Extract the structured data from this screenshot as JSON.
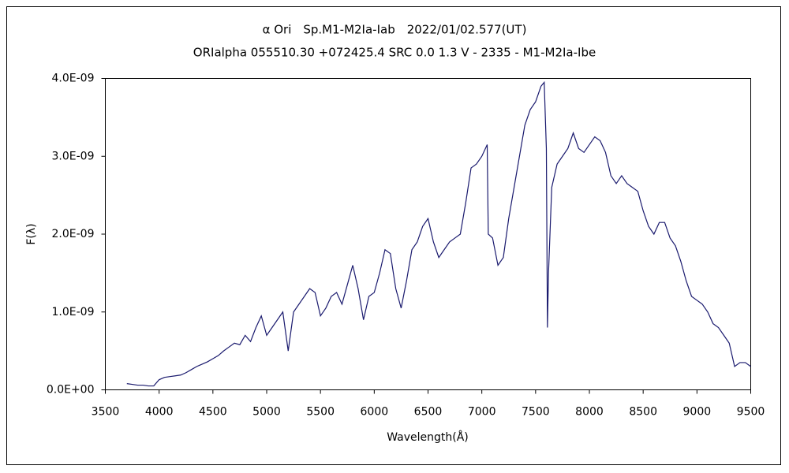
{
  "chart_data": {
    "type": "line",
    "title": "α Ori　Sp.M1-M2Ia-Iab　2022/01/02.577(UT)",
    "subtitle": "ORIalpha 055510.30 +072425.4 SRC 0.0 1.3 V - 2335 - M1-M2Ia-Ibe",
    "x_label": "Wavelength(Å)",
    "y_label": "F(λ)",
    "color": "#1a1a6e",
    "xlim": [
      3500,
      9500
    ],
    "xticks": [
      3500,
      4000,
      4500,
      5000,
      5500,
      6000,
      6500,
      7000,
      7500,
      8000,
      8500,
      9000,
      9500
    ],
    "ylim": [
      0,
      4e-09
    ],
    "yticks": [
      {
        "value": 0,
        "label": "0.0E+00"
      },
      {
        "value": 1e-09,
        "label": "1.0E-09"
      },
      {
        "value": 2e-09,
        "label": "2.0E-09"
      },
      {
        "value": 3e-09,
        "label": "3.0E-09"
      },
      {
        "value": 4e-09,
        "label": "4.0E-09"
      }
    ],
    "x": [
      3700,
      3750,
      3800,
      3850,
      3900,
      3950,
      4000,
      4050,
      4100,
      4150,
      4200,
      4250,
      4300,
      4350,
      4400,
      4450,
      4500,
      4550,
      4600,
      4650,
      4700,
      4750,
      4800,
      4850,
      4900,
      4950,
      5000,
      5050,
      5100,
      5150,
      5200,
      5250,
      5300,
      5350,
      5400,
      5450,
      5500,
      5550,
      5600,
      5650,
      5700,
      5750,
      5800,
      5850,
      5900,
      5950,
      6000,
      6050,
      6100,
      6150,
      6200,
      6250,
      6300,
      6350,
      6400,
      6450,
      6500,
      6550,
      6600,
      6650,
      6700,
      6750,
      6800,
      6850,
      6900,
      6950,
      7000,
      7050,
      7060,
      7100,
      7150,
      7200,
      7250,
      7300,
      7350,
      7400,
      7450,
      7500,
      7550,
      7580,
      7600,
      7610,
      7620,
      7650,
      7700,
      7750,
      7800,
      7850,
      7900,
      7950,
      8000,
      8050,
      8100,
      8150,
      8200,
      8250,
      8300,
      8350,
      8400,
      8450,
      8500,
      8550,
      8600,
      8650,
      8700,
      8750,
      8800,
      8850,
      8900,
      8950,
      9000,
      9050,
      9100,
      9150,
      9200,
      9250,
      9300,
      9350,
      9400,
      9450,
      9500
    ],
    "values": [
      8e-11,
      7e-11,
      6e-11,
      6e-11,
      5e-11,
      5e-11,
      1.3e-10,
      1.6e-10,
      1.7e-10,
      1.8e-10,
      1.9e-10,
      2.2e-10,
      2.6e-10,
      3e-10,
      3.3e-10,
      3.6e-10,
      4e-10,
      4.4e-10,
      5e-10,
      5.5e-10,
      6e-10,
      5.8e-10,
      7e-10,
      6.2e-10,
      8e-10,
      9.5e-10,
      7e-10,
      8e-10,
      9e-10,
      1e-09,
      5e-10,
      1e-09,
      1.1e-09,
      1.2e-09,
      1.3e-09,
      1.25e-09,
      9.5e-10,
      1.05e-09,
      1.2e-09,
      1.25e-09,
      1.1e-09,
      1.35e-09,
      1.6e-09,
      1.3e-09,
      9e-10,
      1.2e-09,
      1.25e-09,
      1.5e-09,
      1.8e-09,
      1.75e-09,
      1.3e-09,
      1.05e-09,
      1.4e-09,
      1.8e-09,
      1.9e-09,
      2.1e-09,
      2.2e-09,
      1.9e-09,
      1.7e-09,
      1.8e-09,
      1.9e-09,
      1.95e-09,
      2e-09,
      2.4e-09,
      2.85e-09,
      2.9e-09,
      3e-09,
      3.15e-09,
      2e-09,
      1.95e-09,
      1.6e-09,
      1.7e-09,
      2.2e-09,
      2.6e-09,
      3e-09,
      3.4e-09,
      3.6e-09,
      3.7e-09,
      3.9e-09,
      3.95e-09,
      3.1e-09,
      8e-10,
      1.5e-09,
      2.6e-09,
      2.9e-09,
      3e-09,
      3.1e-09,
      3.3e-09,
      3.1e-09,
      3.05e-09,
      3.15e-09,
      3.25e-09,
      3.2e-09,
      3.05e-09,
      2.75e-09,
      2.65e-09,
      2.75e-09,
      2.65e-09,
      2.6e-09,
      2.55e-09,
      2.3e-09,
      2.1e-09,
      2e-09,
      2.15e-09,
      2.15e-09,
      1.95e-09,
      1.85e-09,
      1.65e-09,
      1.4e-09,
      1.2e-09,
      1.15e-09,
      1.1e-09,
      1e-09,
      8.5e-10,
      8e-10,
      7e-10,
      6e-10,
      3e-10,
      3.5e-10,
      3.5e-10,
      3e-10
    ]
  }
}
